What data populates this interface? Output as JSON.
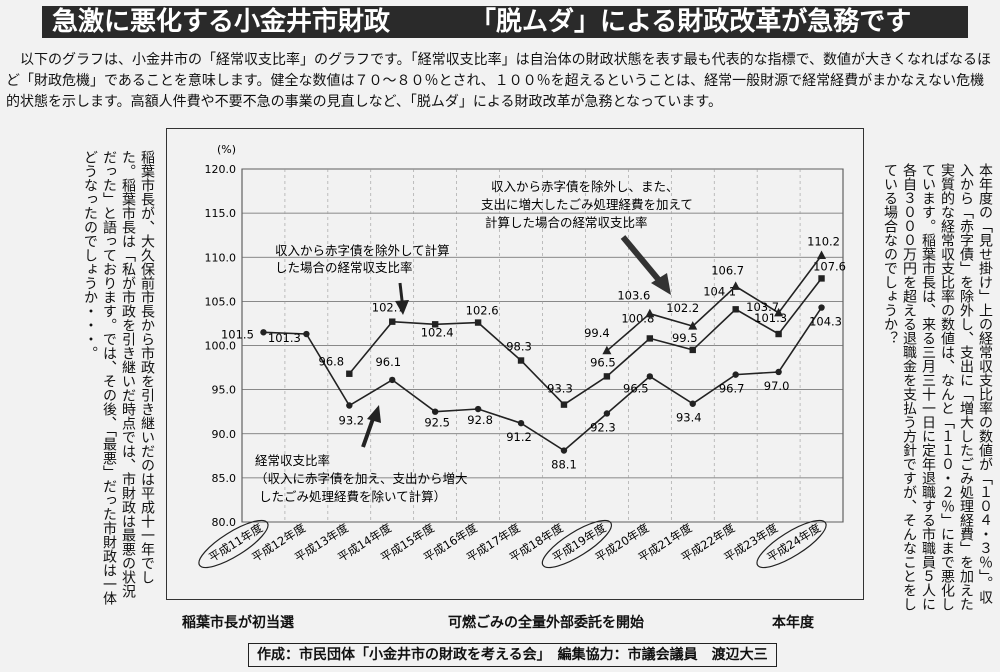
{
  "header": {
    "left": "急激に悪化する小金井市財政",
    "right": "「脱ムダ」による財政改革が急務です"
  },
  "intro": "以下のグラフは、小金井市の「経常収支比率」のグラフです。「経常収支比率」は自治体の財政状態を表す最も代表的な指標で、数値が大きくなればなるほど「財政危機」であることを意味します。健全な数値は７０～８０％とされ、１００％を超えるということは、経常一般財源で経常経費がまかなえない危機的状態を示します。高額人件費や不要不急の事業の見直しなど、「脱ムダ」による財政改革が急務となっています。",
  "left_column": "稲葉市長が、大久保前市長から市政を引き継いだのは平成十一年でした。稲葉市長は「私が市政を引き継いだ時点では、市財政は最悪の状況だった」と語っております。では、その後、「最悪」だった市財政は一体どうなったのでしょうか・・・。",
  "right_column": "本年度の「見せ掛け」上の経常収支比率の数値が「１０４・３％」。収入から「赤字債」を除外し、支出に「増大したごみ処理経費」を加えた実質的な経常収支比率の数値は、なんと「１１０・２％」にまで悪化しています。稲葉市長は、来る三月三十一日に定年退職する市職員５人に各自３０００万円を超える退職金を支払う方針ですが、そんなことをしている場合なのでしょうか？",
  "footer": {
    "label_left": "稲葉市長が初当選",
    "label_mid": "可燃ごみの全量外部委託を開始",
    "label_right": "本年度",
    "credit": "作成：市民団体「小金井市の財政を考える会」　編集協力：市議会議員　渡辺大三"
  },
  "chart_data": {
    "type": "line",
    "yunit": "(%)",
    "ylim": [
      80.0,
      120.0
    ],
    "yticks": [
      "80.0",
      "85.0",
      "90.0",
      "95.0",
      "100.0",
      "105.0",
      "110.0",
      "115.0",
      "120.0"
    ],
    "grid": true,
    "categories": [
      "平成11年度",
      "平成12年度",
      "平成13年度",
      "平成14年度",
      "平成15年度",
      "平成16年度",
      "平成17年度",
      "平成18年度",
      "平成19年度",
      "平成20年度",
      "平成21年度",
      "平成22年度",
      "平成23年度",
      "平成24年度"
    ],
    "circled_categories": [
      "平成11年度",
      "平成19年度",
      "平成24年度"
    ],
    "series": [
      {
        "marker": "circle",
        "values": [
          101.5,
          101.3,
          93.2,
          96.1,
          92.5,
          92.8,
          91.2,
          88.1,
          92.3,
          96.5,
          93.4,
          96.7,
          97.0,
          104.3
        ],
        "labels": [
          "101.5",
          "101.3",
          "93.2",
          "96.1",
          "92.5",
          "92.8",
          "91.2",
          "88.1",
          "92.3",
          "96.5",
          "93.4",
          "96.7",
          "97.0",
          "104.3"
        ]
      },
      {
        "marker": "square",
        "values": [
          null,
          null,
          96.8,
          102.7,
          102.4,
          102.6,
          98.3,
          93.3,
          96.5,
          100.8,
          99.5,
          104.1,
          101.3,
          107.6
        ],
        "labels": [
          "",
          "",
          "96.8",
          "102.7",
          "102.4",
          "102.6",
          "98.3",
          "93.3",
          "96.5",
          "100.8",
          "99.5",
          "104.1",
          "101.3",
          "107.6"
        ]
      },
      {
        "marker": "triangle",
        "values": [
          null,
          null,
          null,
          null,
          null,
          null,
          null,
          null,
          99.4,
          103.6,
          102.2,
          106.7,
          103.7,
          110.2
        ],
        "labels": [
          "",
          "",
          "",
          "",
          "",
          "",
          "",
          "",
          "99.4",
          "103.6",
          "102.2",
          "106.7",
          "103.7",
          "110.2"
        ]
      }
    ],
    "annotations": [
      {
        "line1": "経常収支比率",
        "line2": "（収入に赤字債を加え、支出から増大",
        "line3": "したごみ処理経費を除いて計算）"
      },
      {
        "line1": "収入から赤字債を除外して計算",
        "line2": "した場合の経常収支比率",
        "line3": ""
      },
      {
        "line1": "収入から赤字債を除外し、また、",
        "line2": "支出に増大したごみ処理経費を加えて",
        "line3": "計算した場合の経常収支比率"
      }
    ]
  }
}
